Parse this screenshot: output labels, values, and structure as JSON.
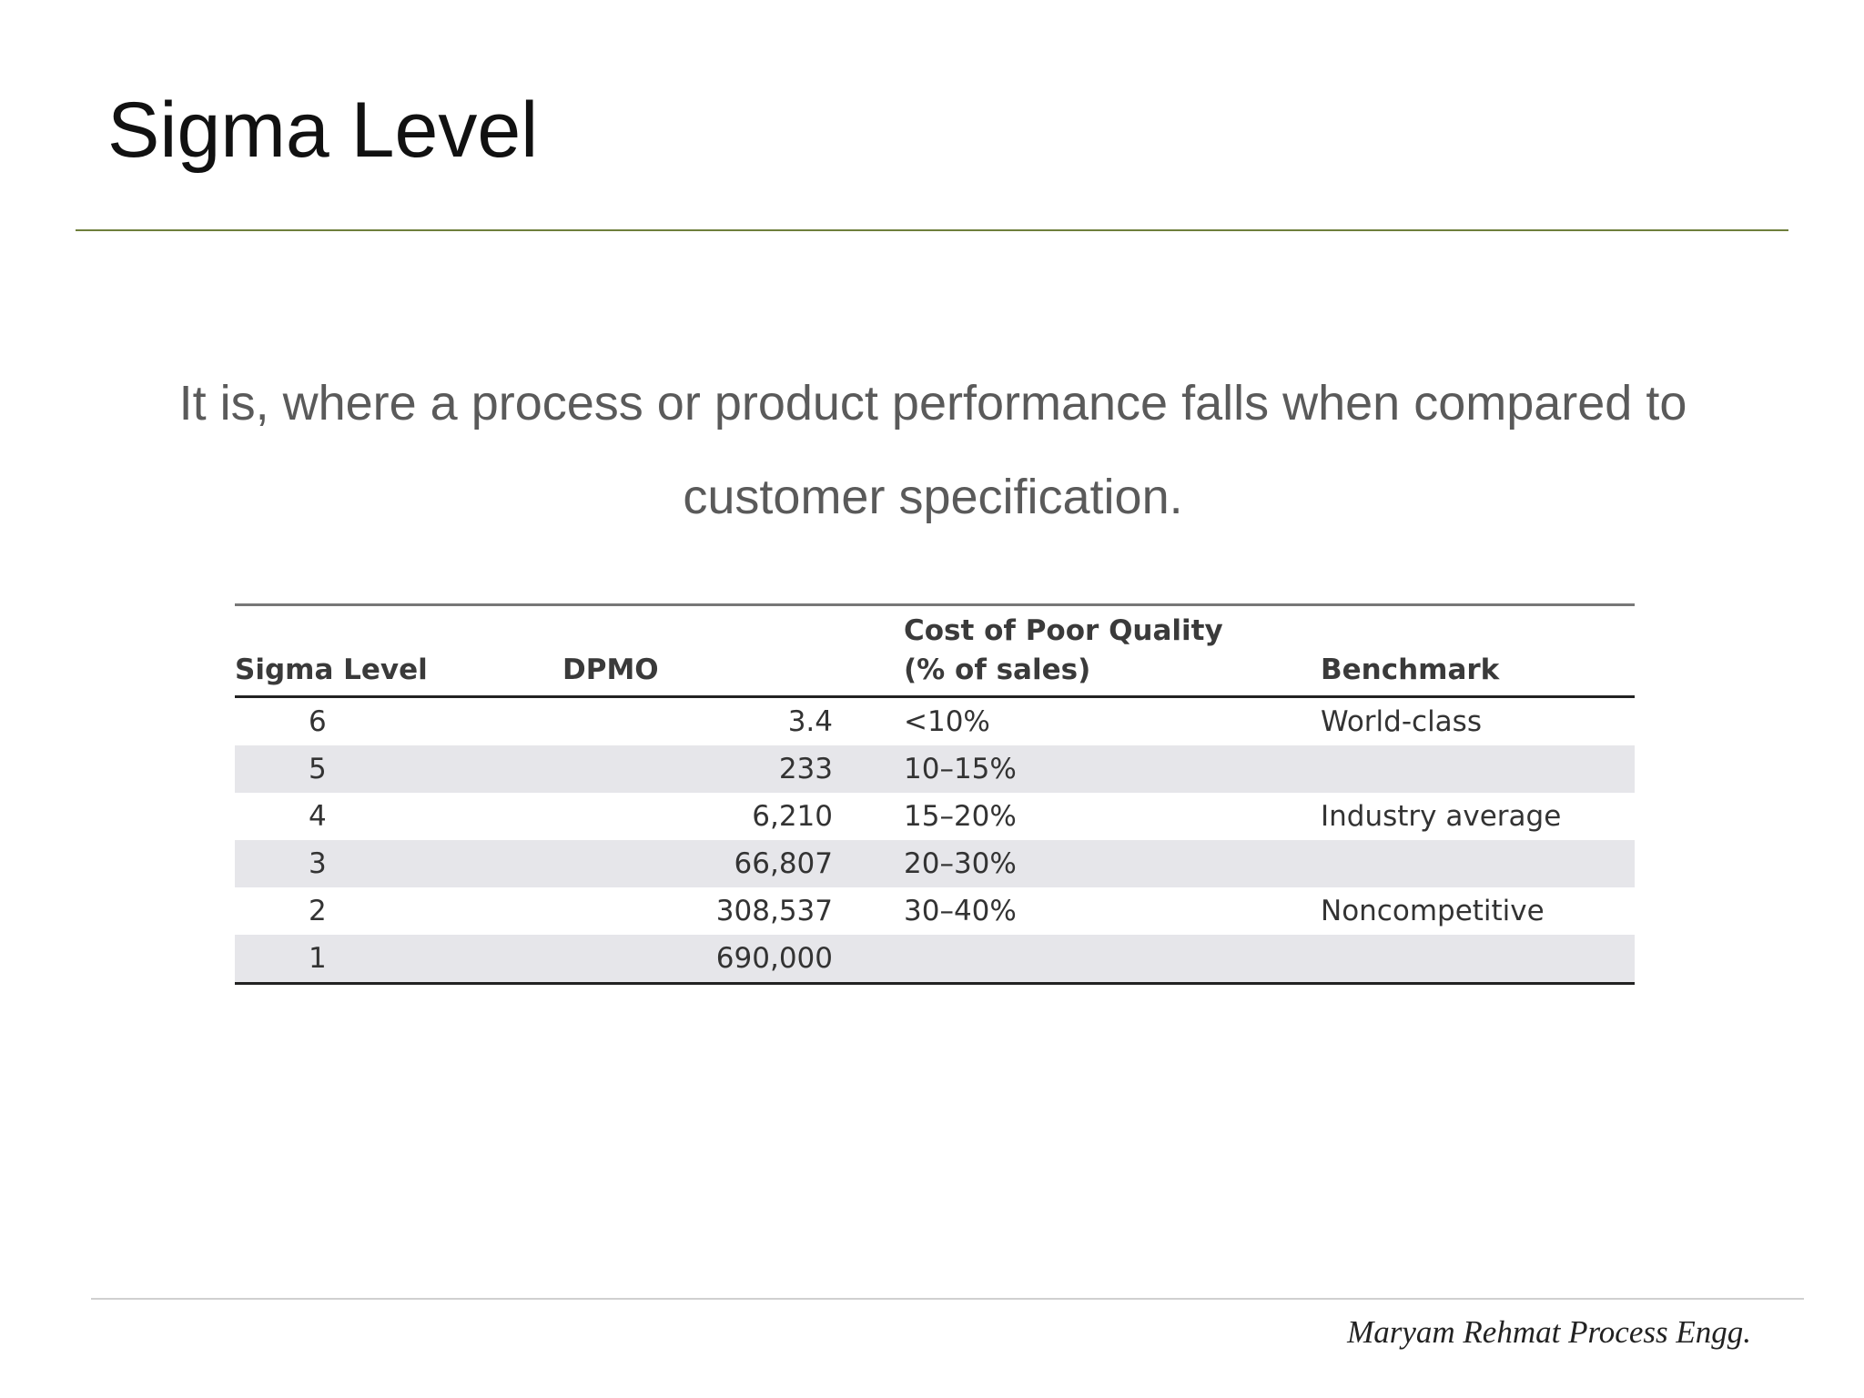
{
  "slide": {
    "title": "Sigma Level",
    "subtitle": "It is, where a process or product performance falls when compared to customer specification.",
    "footer": "Maryam Rehmat Process Engg."
  },
  "table": {
    "headers": {
      "sigma": "Sigma Level",
      "dpmo": "DPMO",
      "copq_line1": "Cost of Poor Quality",
      "copq_line2": "(% of sales)",
      "benchmark": "Benchmark"
    },
    "rows": [
      {
        "sigma": "6",
        "dpmo": "3.4",
        "copq": "<10%",
        "benchmark": "World-class"
      },
      {
        "sigma": "5",
        "dpmo": "233",
        "copq": "10–15%",
        "benchmark": ""
      },
      {
        "sigma": "4",
        "dpmo": "6,210",
        "copq": "15–20%",
        "benchmark": "Industry average"
      },
      {
        "sigma": "3",
        "dpmo": "66,807",
        "copq": "20–30%",
        "benchmark": ""
      },
      {
        "sigma": "2",
        "dpmo": "308,537",
        "copq": "30–40%",
        "benchmark": "Noncompetitive"
      },
      {
        "sigma": "1",
        "dpmo": "690,000",
        "copq": "",
        "benchmark": ""
      }
    ]
  }
}
